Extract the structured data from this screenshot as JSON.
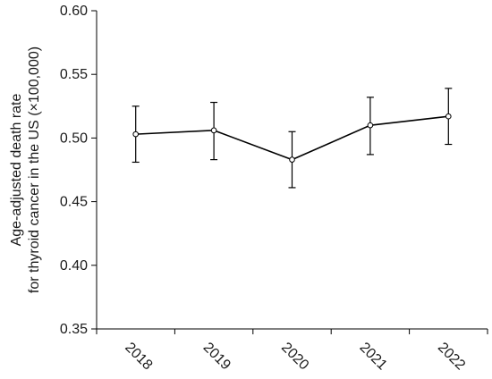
{
  "chart_data": {
    "type": "line",
    "categories": [
      "2018",
      "2019",
      "2020",
      "2021",
      "2022"
    ],
    "series": [
      {
        "values": [
          0.503,
          0.506,
          0.483,
          0.51,
          0.517
        ],
        "error_low": [
          0.481,
          0.483,
          0.461,
          0.487,
          0.495
        ],
        "error_high": [
          0.525,
          0.528,
          0.505,
          0.532,
          0.539
        ]
      }
    ],
    "ylabel_lines": [
      "Age-adjusted death rate",
      "for thyroid cancer in the US (×100,000)"
    ],
    "ylim": [
      0.35,
      0.6
    ],
    "yticks": [
      "0.35",
      "0.40",
      "0.45",
      "0.50",
      "0.55",
      "0.60"
    ],
    "grid": false,
    "marker": "open-circle",
    "colors": {
      "line": "#000000",
      "axis": "#000000"
    }
  }
}
